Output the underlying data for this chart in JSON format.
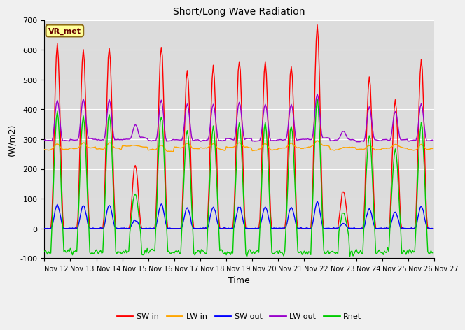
{
  "title": "Short/Long Wave Radiation",
  "ylabel": "(W/m2)",
  "xlabel": "Time",
  "ylim": [
    -100,
    700
  ],
  "xlim": [
    0,
    360
  ],
  "station_label": "VR_met",
  "plot_bg_color": "#dcdcdc",
  "fig_bg_color": "#f0f0f0",
  "grid_color": "white",
  "series": {
    "SW_in": {
      "color": "#ff0000",
      "label": "SW in"
    },
    "LW_in": {
      "color": "#ffa500",
      "label": "LW in"
    },
    "SW_out": {
      "color": "#0000ff",
      "label": "SW out"
    },
    "LW_out": {
      "color": "#9900cc",
      "label": "LW out"
    },
    "Rnet": {
      "color": "#00cc00",
      "label": "Rnet"
    }
  },
  "xtick_labels": [
    "Nov 12",
    "Nov 13",
    "Nov 14",
    "Nov 15",
    "Nov 16",
    "Nov 17",
    "Nov 18",
    "Nov 19",
    "Nov 20",
    "Nov 21",
    "Nov 22",
    "Nov 23",
    "Nov 24",
    "Nov 25",
    "Nov 26",
    "Nov 27"
  ],
  "xtick_positions": [
    0,
    24,
    48,
    72,
    96,
    120,
    144,
    168,
    192,
    216,
    240,
    264,
    288,
    312,
    336,
    360
  ],
  "ytick_labels": [
    "-100",
    "0",
    "100",
    "200",
    "300",
    "400",
    "500",
    "600",
    "700"
  ],
  "ytick_positions": [
    -100,
    0,
    100,
    200,
    300,
    400,
    500,
    600,
    700
  ],
  "sw_peaks": [
    620,
    600,
    610,
    215,
    615,
    530,
    545,
    565,
    560,
    545,
    680,
    125,
    505,
    430,
    570
  ],
  "lw_baselines": [
    265,
    270,
    268,
    275,
    262,
    270,
    268,
    272,
    265,
    270,
    275,
    268,
    265,
    270,
    265
  ],
  "lw_out_baselines": [
    295,
    300,
    298,
    302,
    295,
    298,
    296,
    300,
    295,
    298,
    302,
    298,
    295,
    298,
    295
  ]
}
